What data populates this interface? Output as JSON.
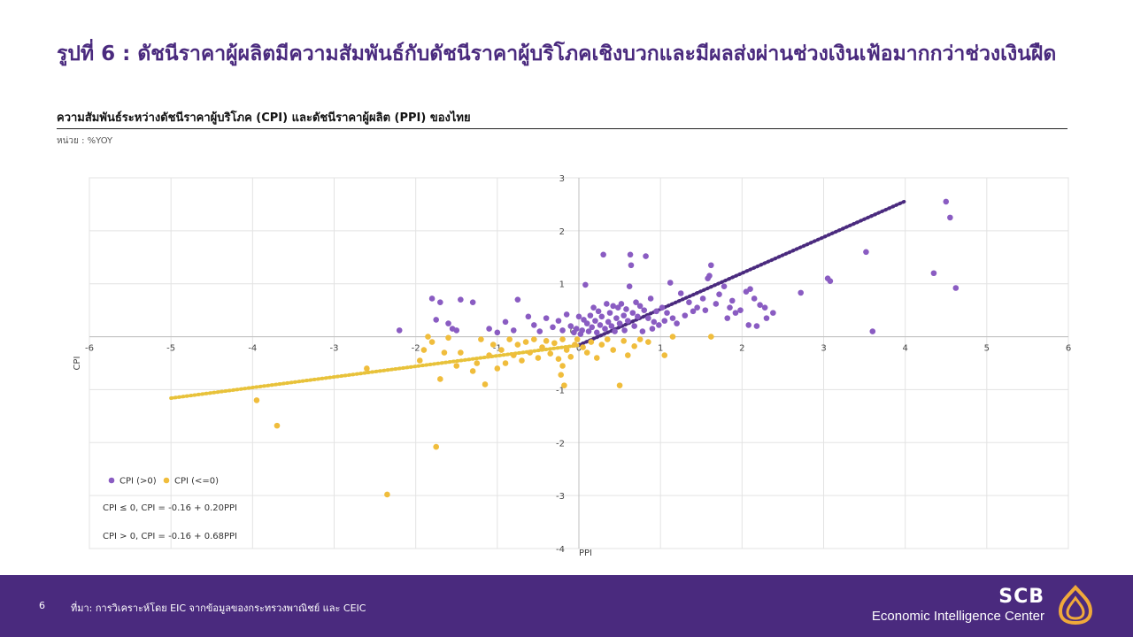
{
  "header": {
    "title": "รูปที่ 6 : ดัชนีราคาผู้ผลิตมีความสัมพันธ์กับดัชนีราคาผู้บริโภคเชิงบวกและมีผลส่งผ่านช่วงเงินเฟ้อมากกว่าช่วงเงินฝืด",
    "subtitle": "ความสัมพันธ์ระหว่างดัชนีราคาผู้บริโภค (CPI) และดัชนีราคาผู้ผลิต (PPI) ของไทย",
    "unit": "หน่วย : %YOY"
  },
  "colors": {
    "brand": "#4a2a7e",
    "positive": "#8a5cc2",
    "nonpositive": "#f0bd3c",
    "trend_positive": "#4a2a7e",
    "trend_nonpositive": "#e8c23a"
  },
  "chart_data": {
    "type": "scatter",
    "xlabel": "PPI",
    "ylabel": "CPI",
    "xlim": [
      -6,
      6
    ],
    "ylim": [
      -4,
      3
    ],
    "x_ticks": [
      "-6",
      "-5",
      "-4",
      "-3",
      "-2",
      "-1",
      "0",
      "1",
      "2",
      "3",
      "4",
      "5",
      "6"
    ],
    "y_ticks": [
      "3",
      "2",
      "1",
      "0",
      "-1",
      "-2",
      "-3",
      "-4"
    ],
    "grid": true,
    "legend_position": "bottom-left",
    "series": [
      {
        "name": "CPI (>0)",
        "points": [
          [
            4.5,
            2.55
          ],
          [
            4.55,
            2.25
          ],
          [
            4.35,
            1.2
          ],
          [
            4.62,
            0.92
          ],
          [
            3.6,
            0.1
          ],
          [
            3.52,
            1.6
          ],
          [
            3.05,
            1.1
          ],
          [
            3.08,
            1.05
          ],
          [
            2.72,
            0.83
          ],
          [
            2.38,
            0.45
          ],
          [
            2.28,
            0.55
          ],
          [
            2.3,
            0.35
          ],
          [
            2.22,
            0.6
          ],
          [
            2.15,
            0.72
          ],
          [
            2.1,
            0.9
          ],
          [
            2.05,
            0.85
          ],
          [
            2.18,
            0.2
          ],
          [
            2.08,
            0.22
          ],
          [
            1.98,
            0.5
          ],
          [
            1.92,
            0.45
          ],
          [
            1.88,
            0.68
          ],
          [
            1.85,
            0.55
          ],
          [
            1.82,
            0.35
          ],
          [
            1.78,
            0.95
          ],
          [
            1.72,
            0.8
          ],
          [
            1.68,
            0.62
          ],
          [
            1.62,
            1.35
          ],
          [
            1.6,
            1.15
          ],
          [
            1.58,
            1.1
          ],
          [
            1.55,
            0.5
          ],
          [
            1.52,
            0.72
          ],
          [
            1.45,
            0.55
          ],
          [
            1.4,
            0.48
          ],
          [
            1.35,
            0.65
          ],
          [
            1.3,
            0.4
          ],
          [
            1.25,
            0.82
          ],
          [
            1.2,
            0.25
          ],
          [
            1.15,
            0.35
          ],
          [
            1.12,
            1.02
          ],
          [
            1.08,
            0.45
          ],
          [
            1.05,
            0.3
          ],
          [
            1.02,
            0.55
          ],
          [
            0.98,
            0.22
          ],
          [
            0.95,
            0.48
          ],
          [
            0.92,
            0.28
          ],
          [
            0.9,
            0.15
          ],
          [
            0.88,
            0.72
          ],
          [
            0.85,
            0.35
          ],
          [
            0.82,
            1.52
          ],
          [
            0.8,
            0.5
          ],
          [
            0.78,
            0.1
          ],
          [
            0.75,
            0.58
          ],
          [
            0.72,
            0.38
          ],
          [
            0.7,
            0.65
          ],
          [
            0.68,
            0.2
          ],
          [
            0.66,
            0.45
          ],
          [
            0.64,
            1.35
          ],
          [
            0.63,
            1.55
          ],
          [
            0.62,
            0.95
          ],
          [
            0.6,
            0.3
          ],
          [
            0.58,
            0.52
          ],
          [
            0.56,
            0.12
          ],
          [
            0.55,
            0.4
          ],
          [
            0.52,
            0.62
          ],
          [
            0.5,
            0.25
          ],
          [
            0.48,
            0.55
          ],
          [
            0.46,
            0.35
          ],
          [
            0.44,
            0.1
          ],
          [
            0.42,
            0.58
          ],
          [
            0.4,
            0.2
          ],
          [
            0.38,
            0.45
          ],
          [
            0.36,
            0.28
          ],
          [
            0.34,
            0.62
          ],
          [
            0.32,
            0.15
          ],
          [
            0.3,
            1.55
          ],
          [
            0.28,
            0.38
          ],
          [
            0.26,
            0.22
          ],
          [
            0.24,
            0.48
          ],
          [
            0.22,
            0.08
          ],
          [
            0.2,
            0.3
          ],
          [
            0.18,
            0.55
          ],
          [
            0.16,
            0.18
          ],
          [
            0.14,
            0.4
          ],
          [
            0.12,
            0.1
          ],
          [
            0.1,
            0.25
          ],
          [
            0.08,
            0.98
          ],
          [
            0.06,
            0.32
          ],
          [
            0.04,
            0.12
          ],
          [
            0.02,
            0.05
          ],
          [
            0.0,
            0.38
          ],
          [
            -0.03,
            0.15
          ],
          [
            -0.06,
            0.08
          ],
          [
            -0.1,
            0.2
          ],
          [
            -0.15,
            0.42
          ],
          [
            -0.2,
            0.12
          ],
          [
            -0.25,
            0.3
          ],
          [
            -0.32,
            0.18
          ],
          [
            -0.4,
            0.35
          ],
          [
            -0.48,
            0.1
          ],
          [
            -0.55,
            0.22
          ],
          [
            -0.62,
            0.38
          ],
          [
            -0.75,
            0.7
          ],
          [
            -0.8,
            0.12
          ],
          [
            -0.9,
            0.28
          ],
          [
            -1.0,
            0.08
          ],
          [
            -1.1,
            0.15
          ],
          [
            -1.3,
            0.65
          ],
          [
            -1.6,
            0.25
          ],
          [
            -1.7,
            0.65
          ],
          [
            -1.55,
            0.15
          ],
          [
            -1.45,
            0.7
          ],
          [
            -1.75,
            0.32
          ],
          [
            -1.8,
            0.72
          ],
          [
            -2.2,
            0.12
          ],
          [
            -1.5,
            0.12
          ]
        ]
      },
      {
        "name": "CPI (<=0)",
        "points": [
          [
            -3.95,
            -1.2
          ],
          [
            -3.7,
            -1.68
          ],
          [
            -2.35,
            -2.98
          ],
          [
            -1.75,
            -2.08
          ],
          [
            -2.6,
            -0.6
          ],
          [
            -1.95,
            -0.45
          ],
          [
            -1.7,
            -0.8
          ],
          [
            -1.5,
            -0.55
          ],
          [
            -1.45,
            -0.3
          ],
          [
            -1.3,
            -0.65
          ],
          [
            -1.25,
            -0.5
          ],
          [
            -1.2,
            -0.05
          ],
          [
            -1.15,
            -0.9
          ],
          [
            -1.1,
            -0.35
          ],
          [
            -1.05,
            -0.15
          ],
          [
            -1.0,
            -0.6
          ],
          [
            -0.95,
            -0.25
          ],
          [
            -0.9,
            -0.5
          ],
          [
            -0.85,
            -0.05
          ],
          [
            -0.8,
            -0.35
          ],
          [
            -0.75,
            -0.15
          ],
          [
            -0.7,
            -0.45
          ],
          [
            -0.65,
            -0.1
          ],
          [
            -0.6,
            -0.3
          ],
          [
            -0.55,
            -0.05
          ],
          [
            -0.5,
            -0.4
          ],
          [
            -0.45,
            -0.2
          ],
          [
            -0.4,
            -0.08
          ],
          [
            -0.35,
            -0.32
          ],
          [
            -0.3,
            -0.12
          ],
          [
            -0.25,
            -0.42
          ],
          [
            -0.2,
            -0.05
          ],
          [
            -0.15,
            -0.25
          ],
          [
            -0.1,
            -0.38
          ],
          [
            -0.05,
            -0.15
          ],
          [
            -0.02,
            -0.05
          ],
          [
            -0.2,
            -0.55
          ],
          [
            -0.22,
            -0.72
          ],
          [
            -0.18,
            -0.92
          ],
          [
            0.05,
            -0.2
          ],
          [
            0.1,
            -0.3
          ],
          [
            0.15,
            -0.1
          ],
          [
            0.22,
            -0.4
          ],
          [
            0.28,
            -0.15
          ],
          [
            0.35,
            -0.05
          ],
          [
            0.42,
            -0.25
          ],
          [
            0.5,
            -0.92
          ],
          [
            0.55,
            -0.08
          ],
          [
            0.6,
            -0.35
          ],
          [
            0.68,
            -0.18
          ],
          [
            0.75,
            -0.05
          ],
          [
            0.85,
            -0.1
          ],
          [
            1.05,
            -0.35
          ],
          [
            1.62,
            0.0
          ],
          [
            1.15,
            0.0
          ],
          [
            -1.85,
            0.0
          ],
          [
            -1.6,
            -0.02
          ],
          [
            -1.65,
            -0.3
          ],
          [
            -1.9,
            -0.25
          ],
          [
            -1.8,
            -0.1
          ]
        ]
      }
    ],
    "trendlines": [
      {
        "series": "CPI (>0)",
        "intercept": -0.16,
        "slope": 0.68,
        "x_range": [
          0,
          4
        ]
      },
      {
        "series": "CPI (<=0)",
        "intercept": -0.16,
        "slope": 0.2,
        "x_range": [
          -5,
          0
        ]
      }
    ],
    "annotations": [
      "CPI ≤ 0, CPI = -0.16 + 0.20PPI",
      "CPI > 0, CPI = -0.16 + 0.68PPI"
    ]
  },
  "footer": {
    "page": "6",
    "source": "ที่มา: การวิเคราะห์โดย EIC จากข้อมูลของกระทรวงพาณิชย์ และ CEIC",
    "brand": "SCB",
    "brand_sub": "Economic Intelligence Center"
  }
}
